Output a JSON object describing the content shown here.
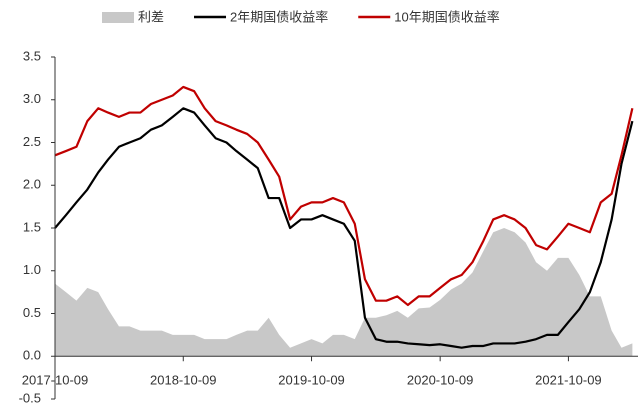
{
  "chart_data": {
    "type": "line",
    "x": [
      "2017-10-09",
      "2017-11-09",
      "2017-12-09",
      "2018-01-09",
      "2018-02-09",
      "2018-03-09",
      "2018-04-09",
      "2018-05-09",
      "2018-06-09",
      "2018-07-09",
      "2018-08-09",
      "2018-09-09",
      "2018-10-09",
      "2018-11-09",
      "2018-12-09",
      "2019-01-09",
      "2019-02-09",
      "2019-03-09",
      "2019-04-09",
      "2019-05-09",
      "2019-06-09",
      "2019-07-09",
      "2019-08-09",
      "2019-09-09",
      "2019-10-09",
      "2019-11-09",
      "2019-12-09",
      "2020-01-09",
      "2020-02-09",
      "2020-03-09",
      "2020-04-09",
      "2020-05-09",
      "2020-06-09",
      "2020-07-09",
      "2020-08-09",
      "2020-09-09",
      "2020-10-09",
      "2020-11-09",
      "2020-12-09",
      "2021-01-09",
      "2021-02-09",
      "2021-03-09",
      "2021-04-09",
      "2021-05-09",
      "2021-06-09",
      "2021-07-09",
      "2021-08-09",
      "2021-09-09",
      "2021-10-09",
      "2021-11-09",
      "2021-12-09",
      "2022-01-09",
      "2022-02-09",
      "2022-03-09",
      "2022-04-09"
    ],
    "series": [
      {
        "name": "利差",
        "kind": "area",
        "color": "#c8c8c8",
        "values": [
          0.85,
          0.75,
          0.65,
          0.8,
          0.75,
          0.55,
          0.35,
          0.35,
          0.3,
          0.3,
          0.3,
          0.25,
          0.25,
          0.25,
          0.2,
          0.2,
          0.2,
          0.25,
          0.3,
          0.3,
          0.45,
          0.25,
          0.1,
          0.15,
          0.2,
          0.15,
          0.25,
          0.25,
          0.2,
          0.45,
          0.45,
          0.48,
          0.53,
          0.45,
          0.56,
          0.57,
          0.66,
          0.78,
          0.85,
          0.98,
          1.23,
          1.45,
          1.5,
          1.45,
          1.33,
          1.1,
          1.0,
          1.15,
          1.15,
          0.95,
          0.7,
          0.7,
          0.3,
          0.1,
          0.15
        ]
      },
      {
        "name": "2年期国债收益率",
        "kind": "line",
        "color": "#000000",
        "values": [
          1.5,
          1.65,
          1.8,
          1.95,
          2.15,
          2.3,
          2.45,
          2.5,
          2.55,
          2.65,
          2.7,
          2.8,
          2.9,
          2.85,
          2.7,
          2.55,
          2.5,
          2.4,
          2.3,
          2.2,
          1.85,
          1.85,
          1.5,
          1.6,
          1.6,
          1.65,
          1.6,
          1.55,
          1.35,
          0.45,
          0.2,
          0.17,
          0.17,
          0.15,
          0.14,
          0.13,
          0.14,
          0.12,
          0.1,
          0.12,
          0.12,
          0.15,
          0.15,
          0.15,
          0.17,
          0.2,
          0.25,
          0.25,
          0.4,
          0.55,
          0.75,
          1.1,
          1.6,
          2.25,
          2.75
        ]
      },
      {
        "name": "10年期国债收益率",
        "kind": "line",
        "color": "#c00000",
        "values": [
          2.35,
          2.4,
          2.45,
          2.75,
          2.9,
          2.85,
          2.8,
          2.85,
          2.85,
          2.95,
          3.0,
          3.05,
          3.15,
          3.1,
          2.9,
          2.75,
          2.7,
          2.65,
          2.6,
          2.5,
          2.3,
          2.1,
          1.6,
          1.75,
          1.8,
          1.8,
          1.85,
          1.8,
          1.55,
          0.9,
          0.65,
          0.65,
          0.7,
          0.6,
          0.7,
          0.7,
          0.8,
          0.9,
          0.95,
          1.1,
          1.35,
          1.6,
          1.65,
          1.6,
          1.5,
          1.3,
          1.25,
          1.4,
          1.55,
          1.5,
          1.45,
          1.8,
          1.9,
          2.35,
          2.9
        ]
      }
    ],
    "xlim": [
      "2017-10-09",
      "2022-04-25"
    ],
    "xticks": [
      "2017-10-09",
      "2018-10-09",
      "2019-10-09",
      "2020-10-09",
      "2021-10-09"
    ],
    "ylim": [
      -0.5,
      3.5
    ],
    "yticks": [
      {
        "value": -0.5,
        "label": "-0.5"
      },
      {
        "value": 0,
        "label": "0.0"
      },
      {
        "value": 0.5,
        "label": "0.5"
      },
      {
        "value": 1,
        "label": "1.0"
      },
      {
        "value": 1.5,
        "label": "1.5"
      },
      {
        "value": 2,
        "label": "2.0"
      },
      {
        "value": 2.5,
        "label": "2.5"
      },
      {
        "value": 3,
        "label": "3.0"
      },
      {
        "value": 3.5,
        "label": "3.5"
      }
    ],
    "legend": "top",
    "grid": false
  }
}
